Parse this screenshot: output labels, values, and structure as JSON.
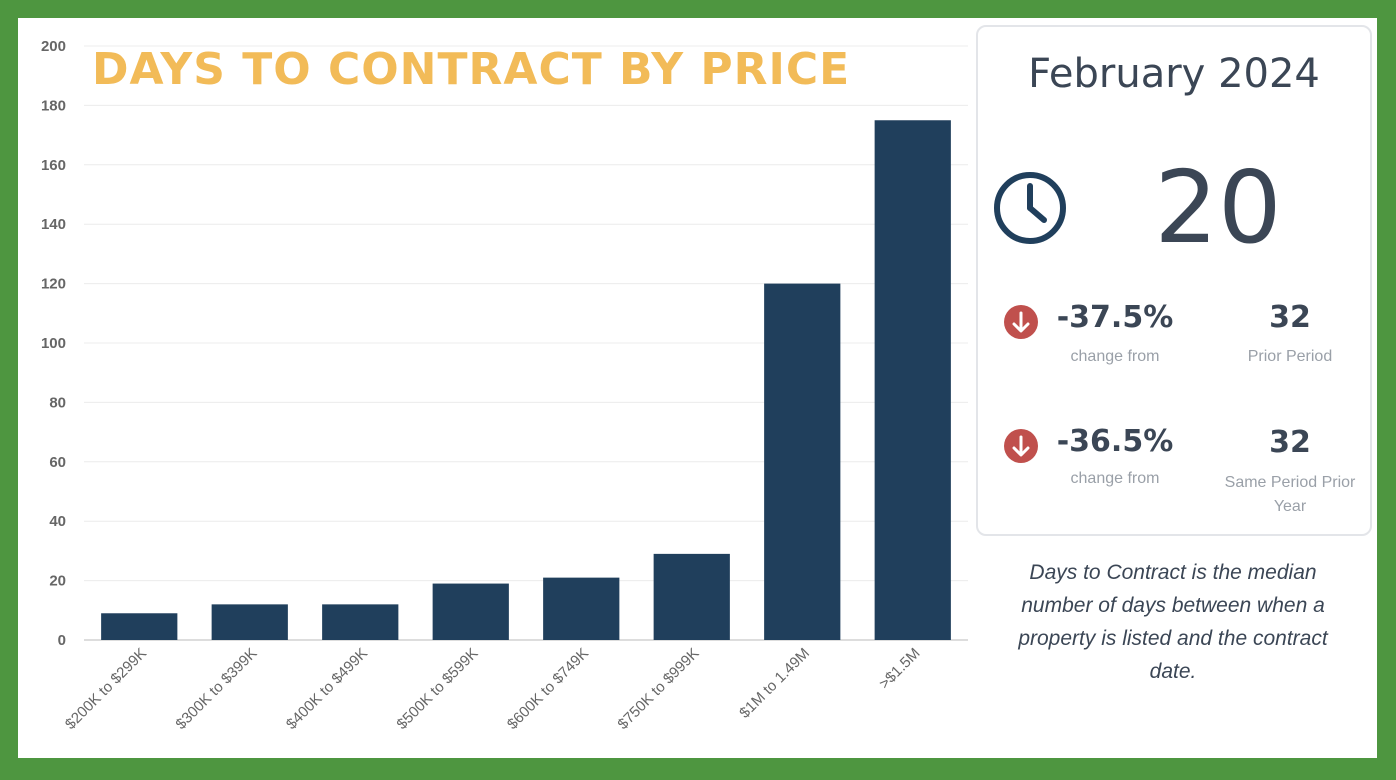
{
  "chart_data": {
    "type": "bar",
    "title": "DAYS TO CONTRACT BY PRICE",
    "categories": [
      "$200K to $299K",
      "$300K to $399K",
      "$400K to $499K",
      "$500K to $599K",
      "$600K to $749K",
      "$750K to $999K",
      "$1M to 1.49M",
      ">$1.5M"
    ],
    "values": [
      9,
      12,
      12,
      19,
      21,
      29,
      120,
      175
    ],
    "ylim": [
      0,
      200
    ],
    "yticks": [
      0,
      20,
      40,
      60,
      80,
      100,
      120,
      140,
      160,
      180,
      200
    ],
    "grid": true,
    "bar_color": "#203f5c",
    "title_color": "#f2bb58"
  },
  "summary": {
    "period": "February 2024",
    "value": "20",
    "icon": "clock-icon",
    "rows": [
      {
        "pct": "-37.5%",
        "pct_label": "change from",
        "value": "32",
        "label": "Prior Period",
        "icon": "arrow-down-icon"
      },
      {
        "pct": "-36.5%",
        "pct_label": "change from",
        "value": "32",
        "label": "Same Period Prior Year",
        "icon": "arrow-down-icon"
      }
    ],
    "down_color": "#c0504d"
  },
  "note": "Days to Contract is the median number of days between when a property is listed and the contract date."
}
